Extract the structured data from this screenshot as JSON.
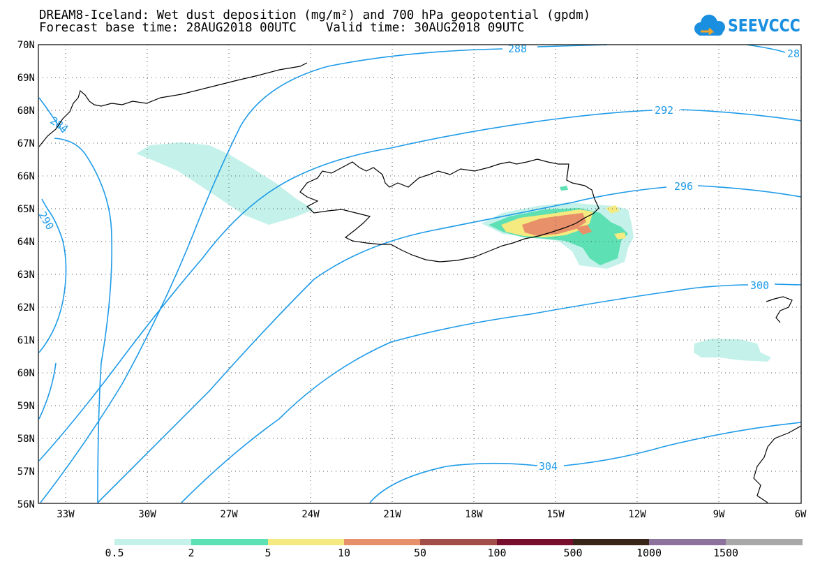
{
  "title_line1": "DREAM8-Iceland: Wet dust deposition (mg/m²) and 700 hPa geopotential (gpdm)",
  "title_line2": "Forecast base time: 28AUG2018 00UTC    Valid time: 30AUG2018 09UTC",
  "logo_text": "SEEVCCC",
  "lat_labels": [
    "70N",
    "69N",
    "68N",
    "67N",
    "66N",
    "65N",
    "64N",
    "63N",
    "62N",
    "61N",
    "60N",
    "59N",
    "58N",
    "57N",
    "56N"
  ],
  "lon_labels": [
    "33W",
    "30W",
    "27W",
    "24W",
    "21W",
    "18W",
    "15W",
    "12W",
    "9W",
    "6W"
  ],
  "contour_labels": [
    "288",
    "28",
    "284",
    "292",
    "296",
    "300",
    "304",
    "290"
  ],
  "legend": {
    "colors": [
      "#c4f2ea",
      "#5ce0b4",
      "#f4ea80",
      "#e8906a",
      "#a24e48",
      "#780e2e",
      "#3a2618",
      "#8e729e",
      "#a8a8a8"
    ],
    "labels": [
      "0.5",
      "2",
      "5",
      "10",
      "50",
      "100",
      "500",
      "1000",
      "1500"
    ]
  },
  "colors": {
    "contour": "#1e9be8",
    "coast": "#000000"
  }
}
